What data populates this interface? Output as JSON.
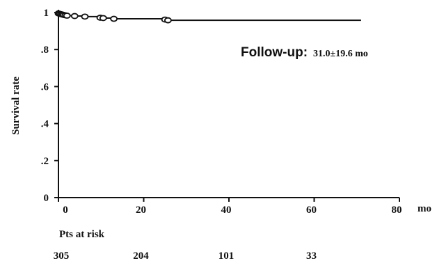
{
  "chart_data": {
    "type": "line",
    "title": "",
    "xlabel": "",
    "ylabel": "Survival rate",
    "x_unit": "mo",
    "xlim": [
      0,
      80
    ],
    "ylim": [
      0,
      1
    ],
    "x_ticks": [
      0,
      20,
      40,
      60,
      80
    ],
    "x_tick_labels": [
      "0",
      "20",
      "40",
      "60",
      "80"
    ],
    "y_ticks": [
      0,
      0.2,
      0.4,
      0.6,
      0.8,
      1
    ],
    "y_tick_labels": [
      "0",
      ".2",
      ".4",
      ".6",
      ".8",
      "1"
    ],
    "grid": false,
    "series": [
      {
        "step": true,
        "color": "#111111",
        "x": [
          0,
          0.3,
          0.6,
          0.9,
          1.2,
          1.6,
          2.0,
          3.8,
          6.2,
          9.8,
          10.5,
          13.0,
          25.0,
          25.7,
          71
        ],
        "y": [
          0.995,
          0.993,
          0.991,
          0.989,
          0.987,
          0.985,
          0.983,
          0.981,
          0.978,
          0.972,
          0.97,
          0.966,
          0.962,
          0.958,
          0.958
        ]
      }
    ],
    "censored": {
      "x": [
        0,
        0.3,
        0.6,
        0.9,
        1.2,
        1.6,
        2.0,
        3.8,
        6.2,
        9.8,
        10.5,
        13.0,
        25.0,
        25.7
      ],
      "y": [
        0.995,
        0.993,
        0.991,
        0.989,
        0.987,
        0.985,
        0.983,
        0.981,
        0.978,
        0.972,
        0.97,
        0.966,
        0.962,
        0.958
      ]
    },
    "annotation": {
      "label": "Follow-up:",
      "value": "31.0±19.6 mo"
    },
    "risk_table": {
      "label": "Pts at risk",
      "x": [
        0,
        20,
        40,
        60
      ],
      "counts": [
        "305",
        "204",
        "101",
        "33"
      ]
    }
  }
}
